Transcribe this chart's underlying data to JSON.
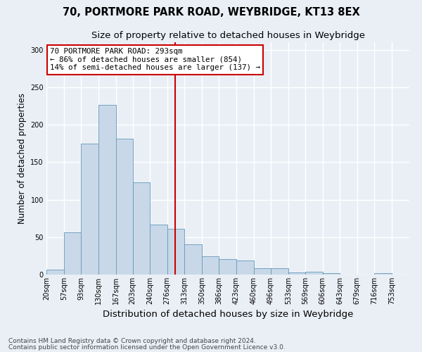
{
  "title": "70, PORTMORE PARK ROAD, WEYBRIDGE, KT13 8EX",
  "subtitle": "Size of property relative to detached houses in Weybridge",
  "xlabel": "Distribution of detached houses by size in Weybridge",
  "ylabel": "Number of detached properties",
  "bin_labels": [
    "20sqm",
    "57sqm",
    "93sqm",
    "130sqm",
    "167sqm",
    "203sqm",
    "240sqm",
    "276sqm",
    "313sqm",
    "350sqm",
    "386sqm",
    "423sqm",
    "460sqm",
    "496sqm",
    "533sqm",
    "569sqm",
    "606sqm",
    "643sqm",
    "679sqm",
    "716sqm",
    "753sqm"
  ],
  "bin_edges": [
    20,
    57,
    93,
    130,
    167,
    203,
    240,
    276,
    313,
    350,
    386,
    423,
    460,
    496,
    533,
    569,
    606,
    643,
    679,
    716,
    753
  ],
  "bar_heights": [
    7,
    56,
    175,
    226,
    181,
    123,
    67,
    61,
    40,
    24,
    21,
    19,
    8,
    8,
    3,
    4,
    2,
    0,
    0,
    2
  ],
  "bar_color": "#c8d8e8",
  "bar_edge_color": "#6699bb",
  "vline_x": 293,
  "vline_color": "#cc0000",
  "annotation_line1": "70 PORTMORE PARK ROAD: 293sqm",
  "annotation_line2": "← 86% of detached houses are smaller (854)",
  "annotation_line3": "14% of semi-detached houses are larger (137) →",
  "annotation_box_edgecolor": "#cc0000",
  "ylim": [
    0,
    310
  ],
  "yticks": [
    0,
    50,
    100,
    150,
    200,
    250,
    300
  ],
  "footer_line1": "Contains HM Land Registry data © Crown copyright and database right 2024.",
  "footer_line2": "Contains public sector information licensed under the Open Government Licence v3.0.",
  "bg_color": "#eaeff6",
  "plot_bg_color": "#eaeff6",
  "grid_color": "#ffffff",
  "title_fontsize": 10.5,
  "subtitle_fontsize": 9.5,
  "xlabel_fontsize": 9.5,
  "ylabel_fontsize": 8.5,
  "tick_fontsize": 7,
  "annotation_fontsize": 7.8,
  "footer_fontsize": 6.5
}
